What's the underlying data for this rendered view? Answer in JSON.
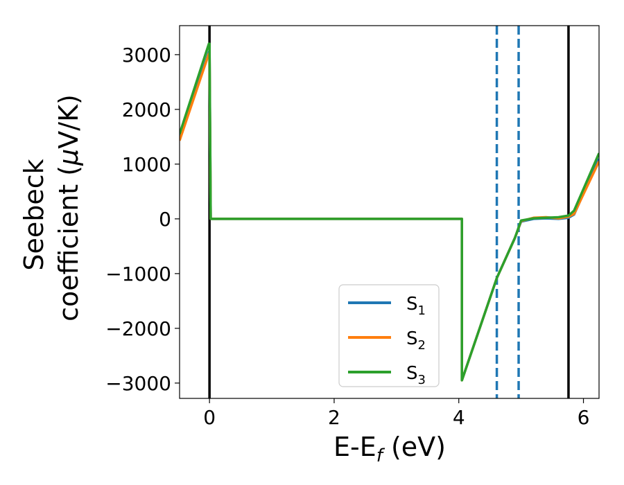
{
  "chart_data": {
    "type": "line",
    "xlabel": "E-E",
    "xlabel_sub": "f",
    "xlabel_unit": " (eV)",
    "ylabel_line1": "Seebeck",
    "ylabel_line2_pre": "coefficient  (",
    "ylabel_line2_mu": "μ",
    "ylabel_line2_post": "V/K)",
    "xlim": [
      -0.48,
      6.25
    ],
    "ylim": [
      -3280,
      3530
    ],
    "xticks": [
      0,
      2,
      4,
      6
    ],
    "xtick_labels": [
      "0",
      "2",
      "4",
      "6"
    ],
    "yticks": [
      -3000,
      -2000,
      -1000,
      0,
      1000,
      2000,
      3000
    ],
    "ytick_labels": [
      "−3000",
      "−2000",
      "−1000",
      "0",
      "1000",
      "2000",
      "3000"
    ],
    "vlines_solid": [
      0.0,
      5.76
    ],
    "vlines_dashed": [
      4.61,
      4.96
    ],
    "vline_solid_color": "#000000",
    "vline_dashed_color": "#1f77b4",
    "legend_position": "lower-center",
    "series": [
      {
        "name": "S",
        "sub": "1",
        "color": "#1f77b4",
        "x": [
          -0.48,
          -0.01,
          0.0,
          0.02,
          4.05,
          4.05,
          4.61,
          4.9,
          5.0,
          5.2,
          5.4,
          5.6,
          5.76,
          5.85,
          6.25
        ],
        "y": [
          1450,
          3050,
          3050,
          0,
          0,
          -2950,
          -1080,
          -350,
          -50,
          0,
          10,
          0,
          20,
          80,
          1100
        ]
      },
      {
        "name": "S",
        "sub": "2",
        "color": "#ff7f0e",
        "x": [
          -0.48,
          -0.01,
          0.0,
          0.02,
          4.05,
          4.05,
          4.61,
          4.9,
          5.0,
          5.2,
          5.4,
          5.6,
          5.76,
          5.85,
          6.25
        ],
        "y": [
          1430,
          3020,
          3020,
          0,
          0,
          -2950,
          -1080,
          -350,
          -40,
          20,
          30,
          10,
          40,
          90,
          1050
        ]
      },
      {
        "name": "S",
        "sub": "3",
        "color": "#2ca02c",
        "x": [
          -0.48,
          -0.01,
          0.0,
          0.02,
          4.05,
          4.05,
          4.61,
          4.9,
          5.0,
          5.2,
          5.4,
          5.6,
          5.76,
          5.85,
          6.25
        ],
        "y": [
          1550,
          3200,
          3200,
          0,
          0,
          -2950,
          -1080,
          -350,
          -30,
          10,
          20,
          30,
          60,
          150,
          1200
        ]
      }
    ]
  }
}
